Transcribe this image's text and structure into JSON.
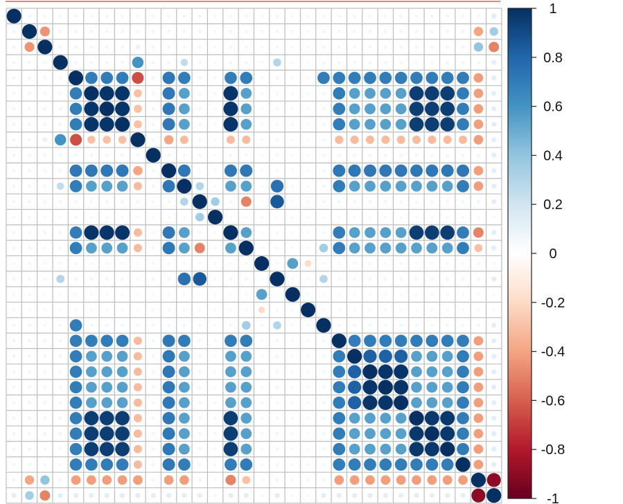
{
  "chart_data": {
    "type": "heatmap",
    "subtype": "correlation-circle-matrix",
    "n": 32,
    "scale_range": [
      -1,
      1
    ],
    "colorbar_ticks": [
      "1",
      "0.8",
      "0.6",
      "0.4",
      "0.2",
      "0",
      "-0.2",
      "-0.4",
      "-0.6",
      "-0.8",
      "-1"
    ],
    "colors": {
      "positive_max": "#053061",
      "positive_mid": "#4393c3",
      "neutral": "#ffffff",
      "negative_mid": "#f4a582",
      "negative_max": "#67001f",
      "grid": "#bdbdbd",
      "top_rule": "#f08080"
    },
    "blocks": {
      "A": [
        4,
        5,
        6,
        7,
        8,
        10,
        11,
        14,
        15,
        21,
        22,
        23,
        24,
        25,
        26,
        27,
        28,
        29
      ],
      "A_core": [
        5,
        6,
        7,
        14
      ],
      "B_core": [
        23,
        24,
        25
      ],
      "C_core": [
        26,
        27,
        28
      ],
      "neg": [
        8,
        30,
        31
      ]
    },
    "pairs": [
      [
        1,
        2,
        -0.45
      ],
      [
        1,
        30,
        -0.4
      ],
      [
        1,
        31,
        0.35
      ],
      [
        2,
        31,
        -0.5
      ],
      [
        2,
        30,
        0.4
      ],
      [
        2,
        8,
        0.1
      ],
      [
        3,
        8,
        0.6
      ],
      [
        3,
        11,
        0.25
      ],
      [
        3,
        17,
        0.3
      ],
      [
        8,
        4,
        -0.65
      ],
      [
        8,
        5,
        -0.3
      ],
      [
        8,
        6,
        -0.3
      ],
      [
        8,
        7,
        -0.3
      ],
      [
        8,
        10,
        -0.4
      ],
      [
        12,
        17,
        0.85
      ],
      [
        12,
        13,
        0.35
      ],
      [
        12,
        15,
        -0.5
      ],
      [
        12,
        11,
        0.3
      ],
      [
        16,
        18,
        0.55
      ],
      [
        16,
        19,
        -0.2
      ],
      [
        17,
        11,
        0.75
      ],
      [
        20,
        17,
        0.3
      ],
      [
        20,
        15,
        0.35
      ],
      [
        20,
        4,
        0.7
      ],
      [
        30,
        31,
        -0.9
      ],
      [
        14,
        30,
        -0.5
      ],
      [
        15,
        30,
        -0.3
      ]
    ]
  }
}
